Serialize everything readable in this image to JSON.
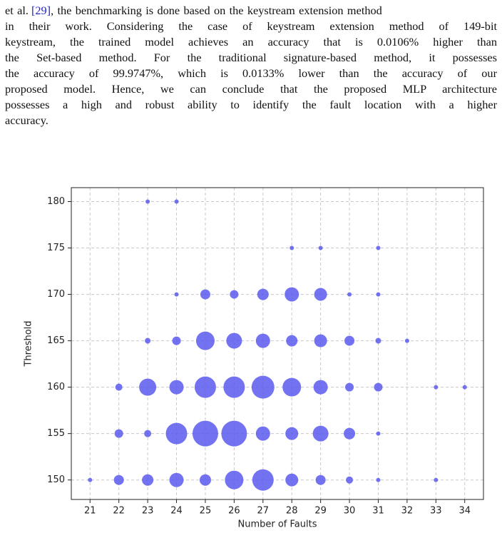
{
  "paragraph": {
    "lines": [
      [
        "et al.",
        "[29]",
        ", the benchmarking is done based on the keystream extension method"
      ],
      "in their work. Considering the case of keystream extension method of 149-bit",
      "keystream, the trained model achieves an accuracy that is 0.0106% higher than",
      "the Set-based method. For the traditional signature-based method, it possesses",
      "the accuracy of 99.9747%, which is 0.0133% lower than the accuracy of our",
      "proposed model. Hence, we can conclude that the proposed MLP architecture",
      "possesses a high and robust ability to identify the fault location with a higher",
      "accuracy."
    ]
  },
  "chart_data": {
    "type": "scatter",
    "xlabel": "Number of Faults",
    "ylabel": "Threshold",
    "color": "#5b5bf0",
    "grid": true,
    "x": [
      23,
      24,
      28,
      29,
      31,
      24,
      25,
      26,
      27,
      28,
      29,
      30,
      31,
      23,
      24,
      25,
      26,
      27,
      28,
      29,
      30,
      31,
      32,
      22,
      23,
      24,
      25,
      26,
      27,
      28,
      29,
      30,
      31,
      33,
      34,
      22,
      23,
      24,
      25,
      26,
      27,
      28,
      29,
      30,
      31,
      21,
      22,
      23,
      24,
      25,
      26,
      27,
      28,
      29,
      30,
      31,
      33
    ],
    "y": [
      180,
      180,
      175,
      175,
      175,
      170,
      170,
      170,
      170,
      170,
      170,
      170,
      170,
      165,
      165,
      165,
      165,
      165,
      165,
      165,
      165,
      165,
      165,
      160,
      160,
      160,
      160,
      160,
      160,
      160,
      160,
      160,
      160,
      160,
      160,
      155,
      155,
      155,
      155,
      155,
      155,
      155,
      155,
      155,
      155,
      150,
      150,
      150,
      150,
      150,
      150,
      150,
      150,
      150,
      150,
      150,
      150
    ],
    "sizes": [
      9,
      9,
      9,
      9,
      9,
      9,
      49,
      36,
      64,
      100,
      81,
      9,
      9,
      16,
      36,
      169,
      121,
      100,
      64,
      81,
      49,
      16,
      9,
      25,
      144,
      100,
      225,
      225,
      256,
      169,
      100,
      36,
      36,
      9,
      9,
      36,
      25,
      225,
      324,
      324,
      100,
      81,
      121,
      64,
      9,
      9,
      49,
      64,
      100,
      64,
      169,
      225,
      81,
      49,
      25,
      9,
      9
    ],
    "xlim": [
      20.35,
      34.65
    ],
    "ylim": [
      147.9,
      181.5
    ],
    "xticks": [
      21,
      22,
      23,
      24,
      25,
      26,
      27,
      28,
      29,
      30,
      31,
      32,
      33,
      34
    ],
    "yticks": [
      150,
      155,
      160,
      165,
      170,
      175,
      180
    ]
  }
}
